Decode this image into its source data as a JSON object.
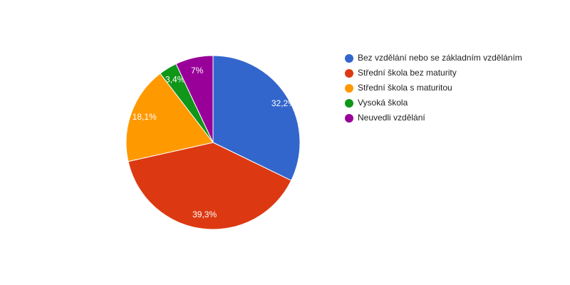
{
  "chart_data": {
    "type": "pie",
    "categories": [
      "Bez vzdělání nebo se základním vzděláním",
      "Střední škola bez maturity",
      "Střední škola s maturitou",
      "Vysoká škola",
      "Neuvedli vzdělání"
    ],
    "values": [
      32.2,
      39.3,
      18.1,
      3.4,
      7
    ],
    "value_labels": [
      "32,2%",
      "39,3%",
      "18,1%",
      "3,4%",
      "7%"
    ],
    "colors": [
      "#3366cc",
      "#dc3912",
      "#ff9900",
      "#109618",
      "#990099"
    ],
    "legend": "right"
  }
}
